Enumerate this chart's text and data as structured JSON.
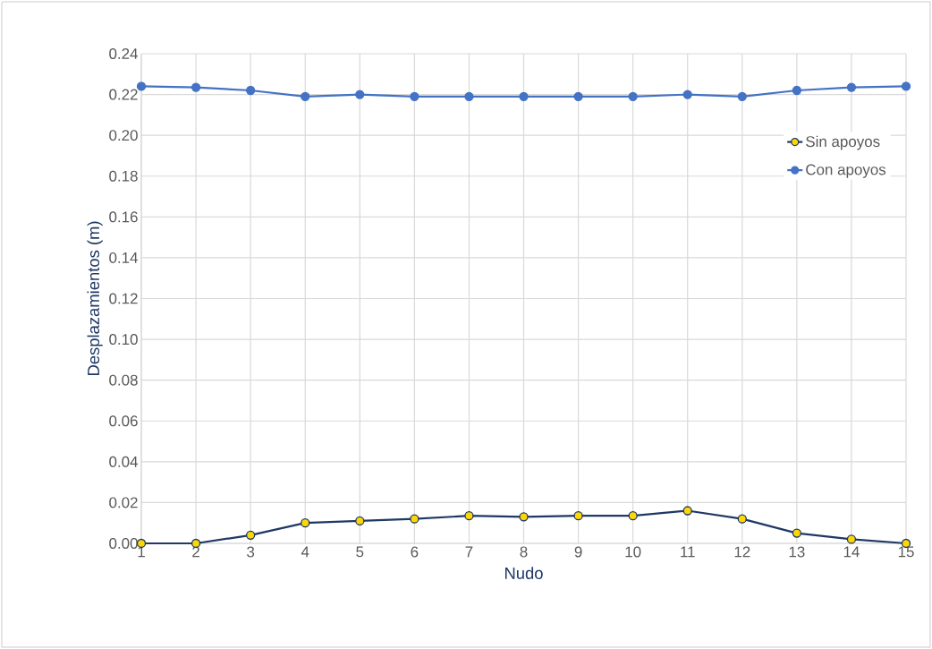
{
  "chart_data": {
    "type": "line",
    "xlabel": "Nudo",
    "ylabel": "Desplazamientos (m)",
    "x": [
      1,
      2,
      3,
      4,
      5,
      6,
      7,
      8,
      9,
      10,
      11,
      12,
      13,
      14,
      15
    ],
    "series": [
      {
        "name": "Sin apoyos",
        "color": "#1f3864",
        "values": [
          0,
          0.0,
          0.004,
          0.01,
          0.011,
          0.012,
          0.0135,
          0.013,
          0.0135,
          0.0135,
          0.016,
          0.012,
          0.005,
          0.002,
          0
        ]
      },
      {
        "name": "Con apoyos",
        "color": "#4472c4",
        "values": [
          0.224,
          0.2235,
          0.222,
          0.219,
          0.22,
          0.219,
          0.219,
          0.219,
          0.219,
          0.219,
          0.22,
          0.219,
          0.222,
          0.2235,
          0.224
        ]
      }
    ],
    "xlim": [
      1,
      15
    ],
    "ylim": [
      0,
      0.24
    ],
    "xticks": [
      1,
      2,
      3,
      4,
      5,
      6,
      7,
      8,
      9,
      10,
      11,
      12,
      13,
      14,
      15
    ],
    "yticks": [
      {
        "value": 0,
        "label": "0.00"
      },
      {
        "value": 0.02,
        "label": "0.02"
      },
      {
        "value": 0.04,
        "label": "0.04"
      },
      {
        "value": 0.06,
        "label": "0.06"
      },
      {
        "value": 0.08,
        "label": "0.08"
      },
      {
        "value": 0.1,
        "label": "0.10"
      },
      {
        "value": 0.12,
        "label": "0.12"
      },
      {
        "value": 0.14,
        "label": "0.14"
      },
      {
        "value": 0.16,
        "label": "0.16"
      },
      {
        "value": 0.18,
        "label": "0.18"
      },
      {
        "value": 0.2,
        "label": "0.20"
      },
      {
        "value": 0.22,
        "label": "0.22"
      },
      {
        "value": 0.24,
        "label": "0.24"
      }
    ],
    "grid": true,
    "legend": "right",
    "marker": "circle",
    "line_style": "solid"
  }
}
